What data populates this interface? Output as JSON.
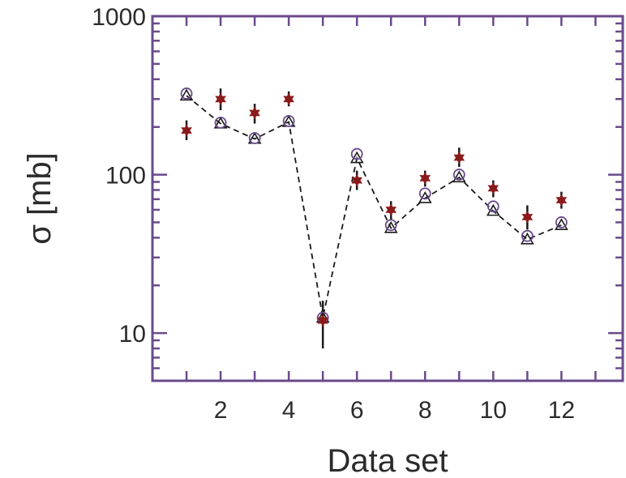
{
  "chart_data": {
    "type": "scatter",
    "title": "",
    "xlabel": "Data set",
    "ylabel": "σ  [mb]",
    "xlim": [
      0,
      13.8
    ],
    "ylim": [
      5,
      1000
    ],
    "yscale": "log",
    "x_ticks_labeled": [
      2,
      4,
      6,
      8,
      10,
      12
    ],
    "y_ticks_labeled": [
      10,
      100,
      1000
    ],
    "y_tick_labels": [
      "10",
      "100",
      "1000"
    ],
    "grid": false,
    "legend": "none",
    "colors": {
      "frame": "#6a4a8c",
      "experiment": "#8b1a1a",
      "errorbar": "#1a1a1a",
      "circle_model": "#6a4a8c",
      "triangle_model": "#1a1a1a",
      "dashed_line": "#1a1a1a"
    },
    "series": [
      {
        "marker": "star",
        "x": [
          1,
          2,
          3,
          4,
          5,
          6,
          7,
          8,
          9,
          10,
          11,
          12
        ],
        "y": [
          190,
          300,
          245,
          300,
          12,
          92,
          60,
          95,
          128,
          82,
          54,
          69
        ],
        "err_low": [
          165,
          255,
          210,
          270,
          8,
          80,
          52,
          84,
          112,
          72,
          45,
          61
        ],
        "err_high": [
          220,
          350,
          280,
          335,
          16,
          106,
          68,
          106,
          148,
          92,
          64,
          78
        ]
      },
      {
        "marker": "circle",
        "x": [
          1,
          2,
          3,
          4,
          5,
          6,
          7,
          8,
          9,
          10,
          11,
          12
        ],
        "y": [
          325,
          213,
          170,
          218,
          12.5,
          135,
          48,
          76,
          100,
          63,
          41,
          50
        ]
      },
      {
        "marker": "triangle",
        "line": "dashed",
        "x": [
          1,
          2,
          3,
          4,
          5,
          6,
          7,
          8,
          9,
          10,
          11,
          12
        ],
        "y": [
          315,
          210,
          168,
          215,
          12.5,
          127,
          46,
          71,
          96,
          59,
          39,
          48
        ]
      }
    ]
  }
}
